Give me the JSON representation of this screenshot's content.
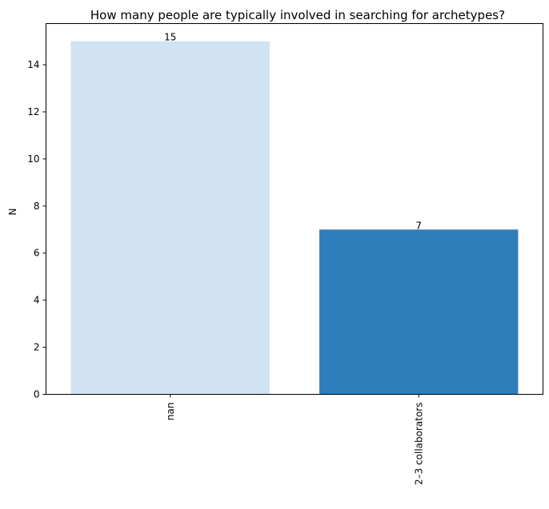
{
  "chart_data": {
    "type": "bar",
    "title": "How many people are typically involved in searching for archetypes?",
    "xlabel": "",
    "ylabel": "N",
    "categories": [
      "nan",
      "2–3 collaborators"
    ],
    "values": [
      15,
      7
    ],
    "data_labels": [
      "15",
      "7"
    ],
    "bar_colors": [
      "#d1e2f2",
      "#2e7ebc"
    ],
    "ylim": [
      0,
      15.75
    ],
    "yticks": [
      0,
      2,
      4,
      6,
      8,
      10,
      12,
      14
    ],
    "grid": false,
    "legend": "none"
  }
}
